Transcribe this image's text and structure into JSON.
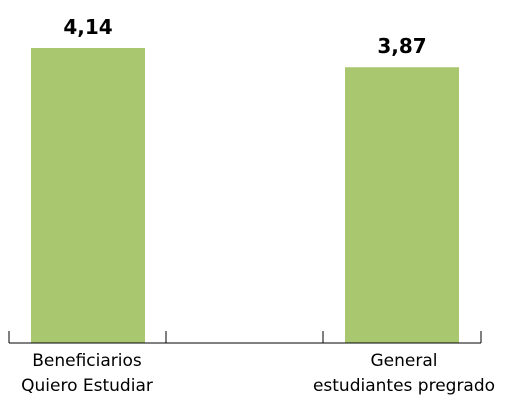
{
  "chart_data": {
    "type": "bar",
    "categories": [
      [
        "Beneficiarios",
        "Quiero Estudiar"
      ],
      [
        "General",
        "estudiantes pregrado"
      ]
    ],
    "values": [
      4.14,
      3.87
    ],
    "data_labels": [
      "4,14",
      "3,87"
    ],
    "bar_color": "#a9c76e",
    "ylim": [
      0,
      4.14
    ],
    "grid": false,
    "legend": "none"
  }
}
